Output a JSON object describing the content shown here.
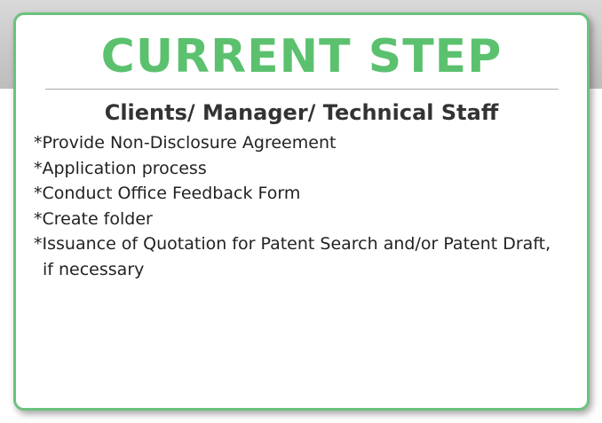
{
  "panel": {
    "title": "CURRENT STEP",
    "subtitle": "Clients/ Manager/ Technical Staff",
    "steps": [
      "*Provide Non-Disclosure Agreement",
      "*Application process",
      "*Conduct Office Feedback Form",
      "*Create folder",
      "*Issuance of Quotation for Patent Search and/or Patent Draft, if necessary"
    ]
  },
  "colors": {
    "accent_green": "#5bc16f",
    "border_green": "#6cc27d",
    "text": "#222222"
  }
}
